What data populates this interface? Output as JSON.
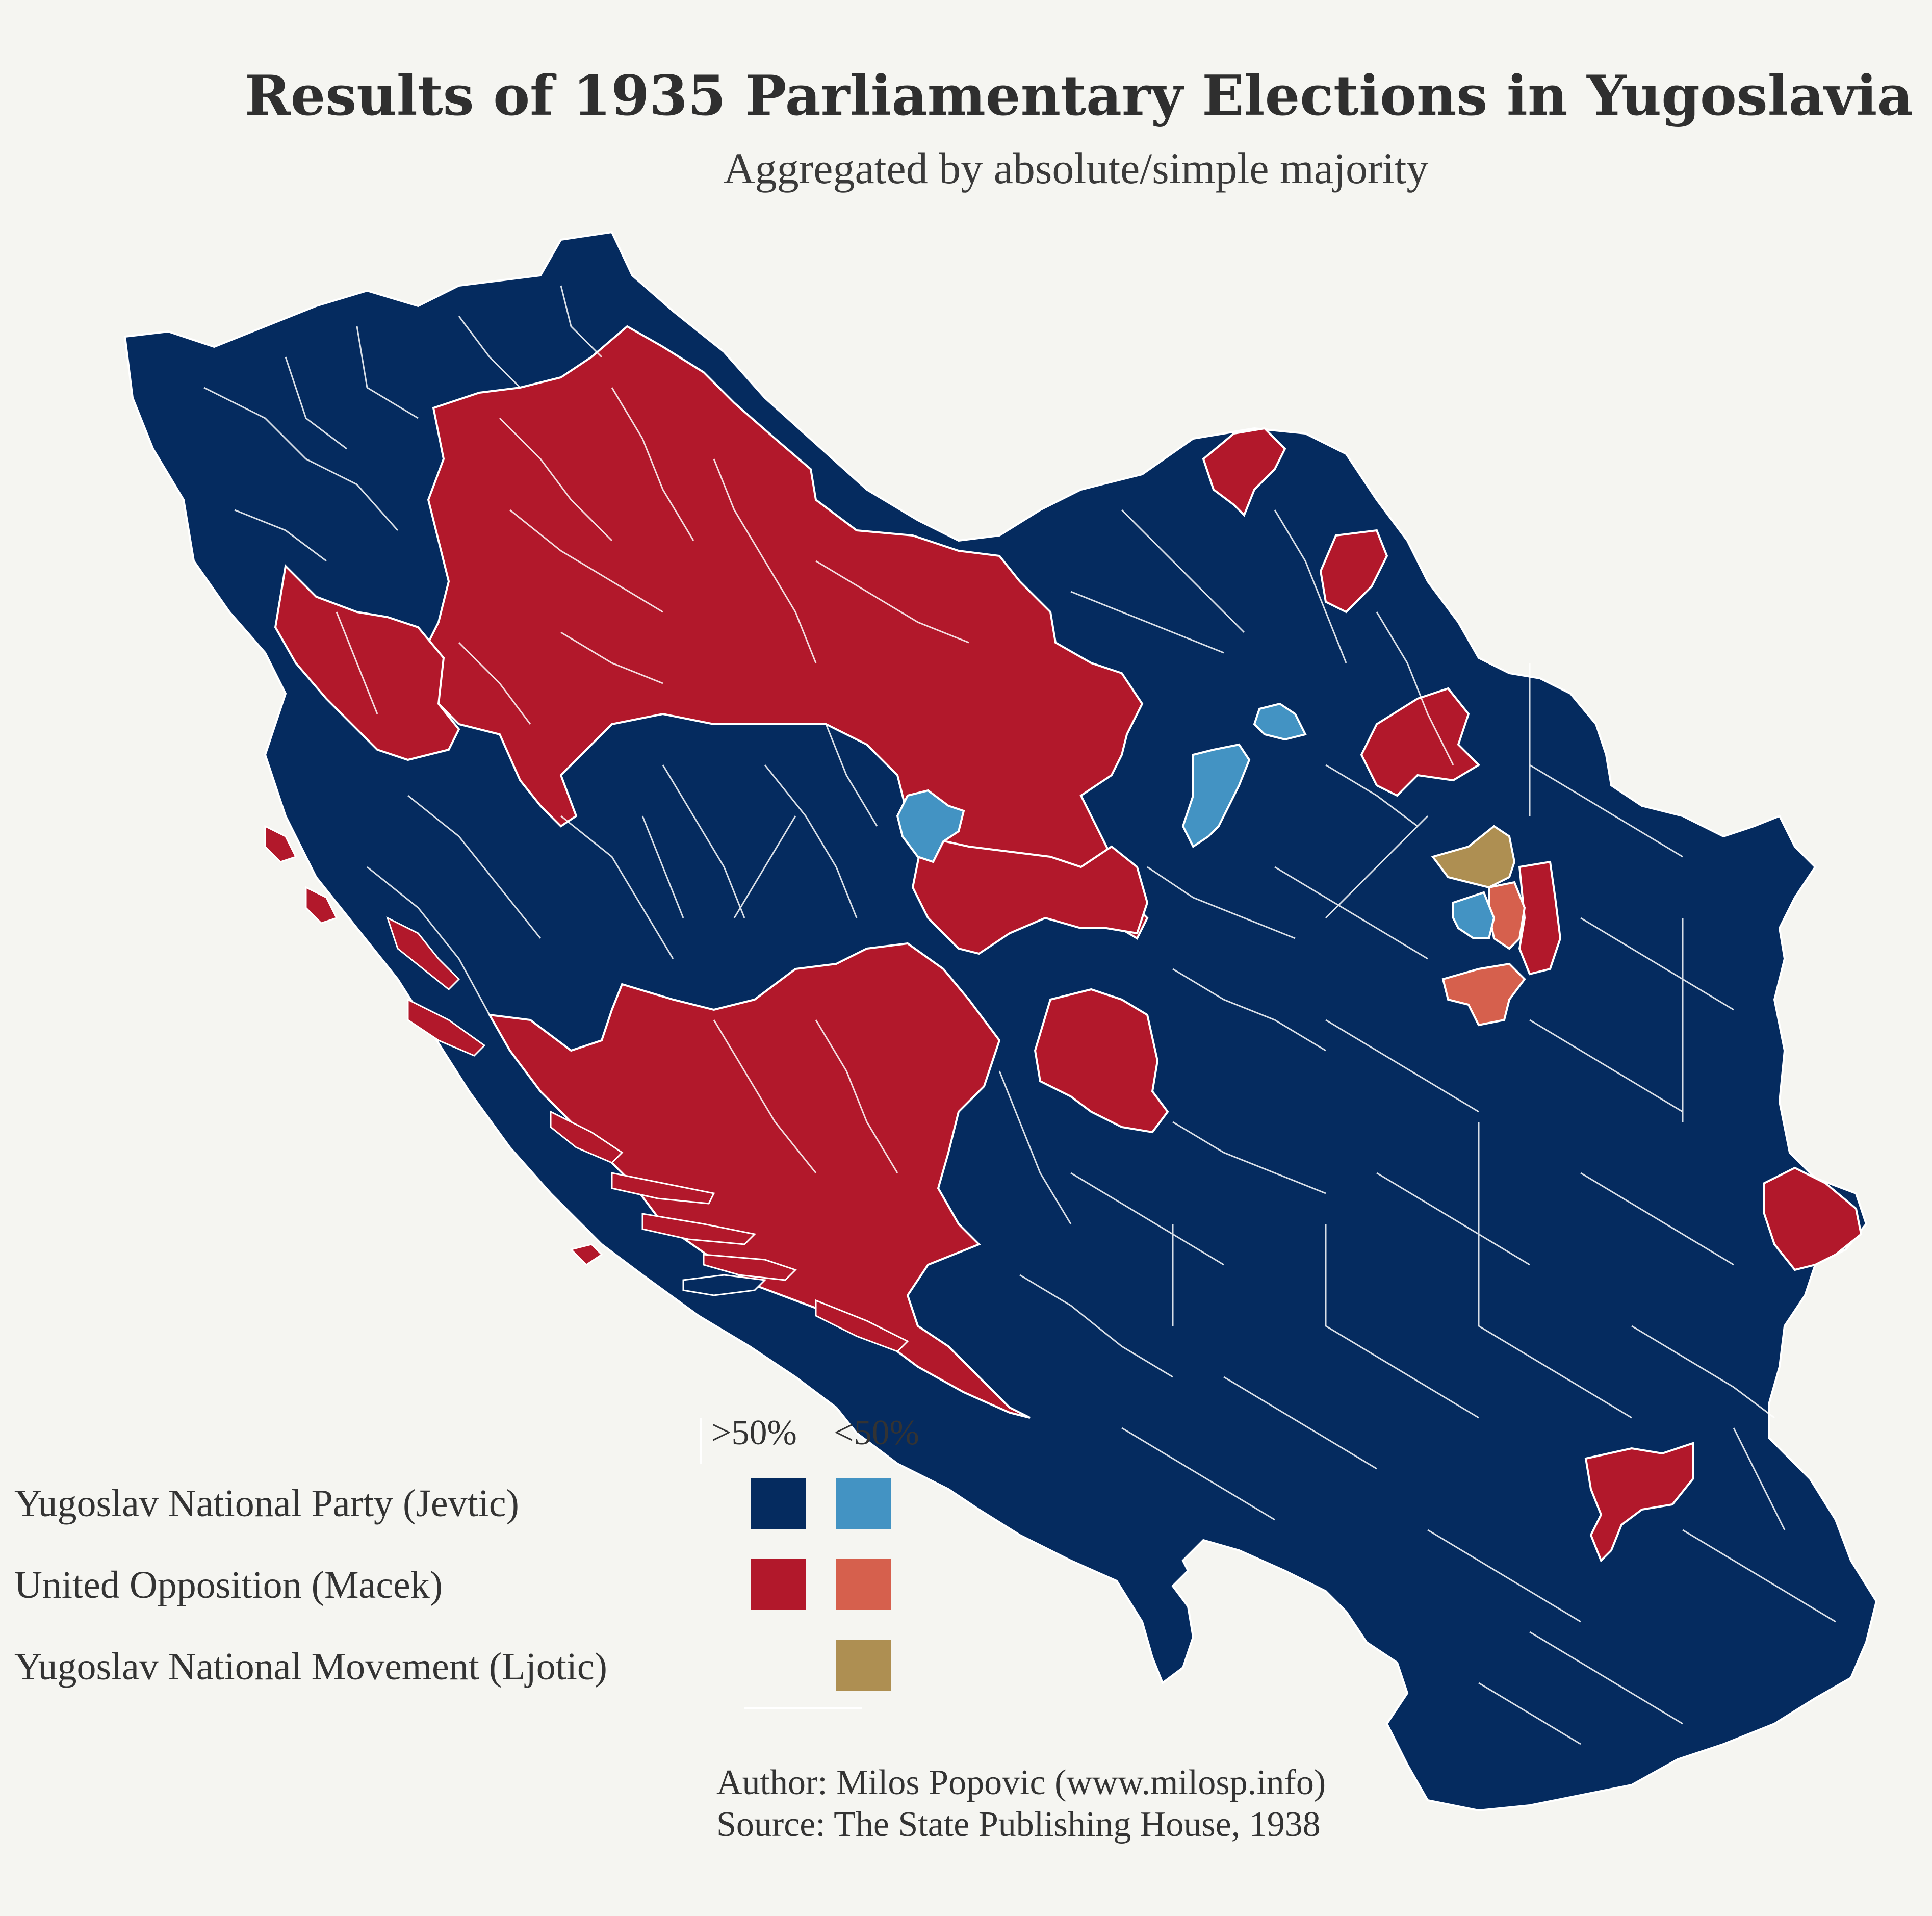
{
  "title": "Results of 1935 Parliamentary Elections in Yugoslavia",
  "subtitle": "Aggregated by absolute/simple majority",
  "legend": {
    "column_headers": [
      ">50%",
      "<50%"
    ],
    "rows": [
      {
        "label": "Yugoslav National Party (Jevtic)",
        "majority_color": "#052b5f",
        "plurality_color": "#4393c3"
      },
      {
        "label": "United Opposition (Macek)",
        "majority_color": "#b2182b",
        "plurality_color": "#d6604d"
      },
      {
        "label": "Yugoslav National Movement (Ljotic)",
        "majority_color": null,
        "plurality_color": "#ae8f52"
      }
    ]
  },
  "credits": {
    "author": "Author: Milos Popovic (www.milosp.info)",
    "source": "Source: The State Publishing House, 1938"
  },
  "colors": {
    "background": "#f5f5f1",
    "border": "#ffffff"
  }
}
